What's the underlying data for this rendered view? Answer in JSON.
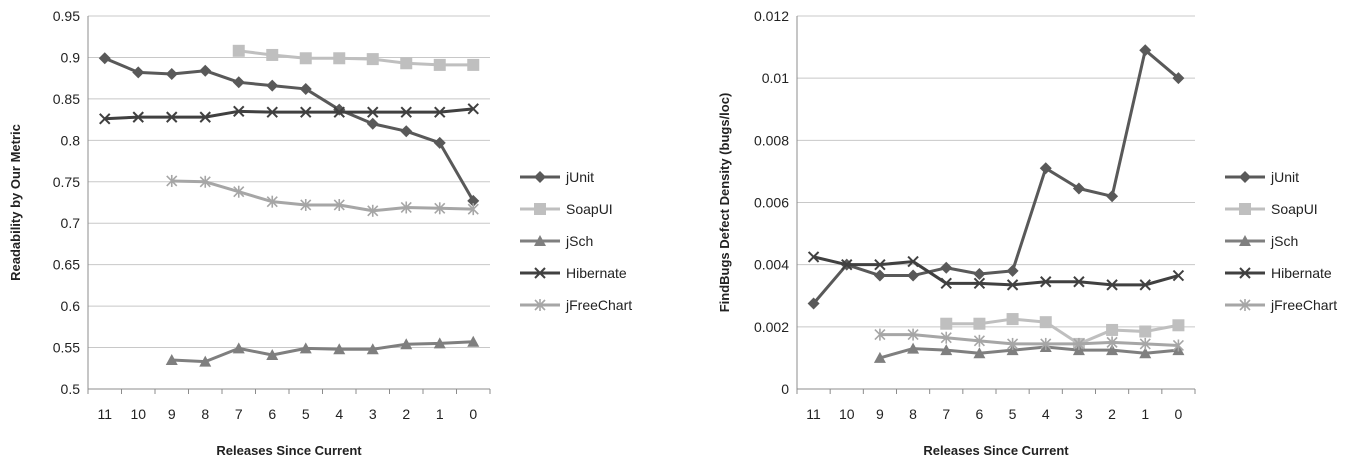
{
  "chart_data": [
    {
      "type": "line",
      "ylabel": "Readability by Our Metric",
      "xlabel": "Releases Since Current",
      "categories": [
        "11",
        "10",
        "9",
        "8",
        "7",
        "6",
        "5",
        "4",
        "3",
        "2",
        "1",
        "0"
      ],
      "ylim": [
        0.5,
        0.95
      ],
      "yticks": [
        "0.5",
        "0.55",
        "0.6",
        "0.65",
        "0.7",
        "0.75",
        "0.8",
        "0.85",
        "0.9",
        "0.95"
      ],
      "grid": "horizontal",
      "legend": "right",
      "series": [
        {
          "name": "jUnit",
          "color": "#595959",
          "marker": "diamond",
          "values": [
            0.899,
            0.882,
            0.88,
            0.884,
            0.87,
            0.866,
            0.862,
            0.837,
            0.82,
            0.811,
            0.797,
            0.727
          ]
        },
        {
          "name": "SoapUI",
          "color": "#bfbfbf",
          "marker": "square",
          "values": [
            null,
            null,
            null,
            null,
            0.908,
            0.903,
            0.899,
            0.899,
            0.898,
            0.893,
            0.891,
            0.891
          ]
        },
        {
          "name": "jSch",
          "color": "#7f7f7f",
          "marker": "triangle",
          "values": [
            null,
            null,
            0.535,
            0.533,
            0.549,
            0.541,
            0.549,
            0.548,
            0.548,
            0.554,
            0.555,
            0.557
          ]
        },
        {
          "name": "Hibernate",
          "color": "#404040",
          "marker": "x",
          "values": [
            0.826,
            0.828,
            0.828,
            0.828,
            0.835,
            0.834,
            0.834,
            0.834,
            0.834,
            0.834,
            0.834,
            0.838
          ]
        },
        {
          "name": "jFreeChart",
          "color": "#a6a6a6",
          "marker": "star",
          "values": [
            null,
            null,
            0.751,
            0.75,
            0.738,
            0.726,
            0.722,
            0.722,
            0.715,
            0.719,
            0.718,
            0.717
          ]
        }
      ]
    },
    {
      "type": "line",
      "ylabel": "FindBugs Defect Density (bugs/loc)",
      "xlabel": "Releases Since Current",
      "categories": [
        "11",
        "10",
        "9",
        "8",
        "7",
        "6",
        "5",
        "4",
        "3",
        "2",
        "1",
        "0"
      ],
      "ylim": [
        0,
        0.012
      ],
      "yticks": [
        "0",
        "0.002",
        "0.004",
        "0.006",
        "0.008",
        "0.01",
        "0.012"
      ],
      "grid": "horizontal",
      "legend": "right",
      "series": [
        {
          "name": "jUnit",
          "color": "#595959",
          "marker": "diamond",
          "values": [
            0.00275,
            0.004,
            0.00365,
            0.00365,
            0.0039,
            0.0037,
            0.0038,
            0.0071,
            0.00645,
            0.0062,
            0.0109,
            0.01
          ]
        },
        {
          "name": "SoapUI",
          "color": "#bfbfbf",
          "marker": "square",
          "values": [
            null,
            null,
            null,
            null,
            0.0021,
            0.0021,
            0.00225,
            0.00215,
            0.00145,
            0.0019,
            0.00185,
            0.00205
          ]
        },
        {
          "name": "jSch",
          "color": "#7f7f7f",
          "marker": "triangle",
          "values": [
            null,
            null,
            0.001,
            0.0013,
            0.00125,
            0.00115,
            0.00125,
            0.00135,
            0.00125,
            0.00125,
            0.00115,
            0.00125
          ]
        },
        {
          "name": "Hibernate",
          "color": "#404040",
          "marker": "x",
          "values": [
            0.00425,
            0.004,
            0.004,
            0.0041,
            0.0034,
            0.0034,
            0.00335,
            0.00345,
            0.00345,
            0.00335,
            0.00335,
            0.00365
          ]
        },
        {
          "name": "jFreeChart",
          "color": "#a6a6a6",
          "marker": "star",
          "values": [
            null,
            null,
            0.00175,
            0.00175,
            0.00165,
            0.00155,
            0.00145,
            0.00145,
            0.00145,
            0.0015,
            0.00145,
            0.0014
          ]
        }
      ]
    }
  ]
}
